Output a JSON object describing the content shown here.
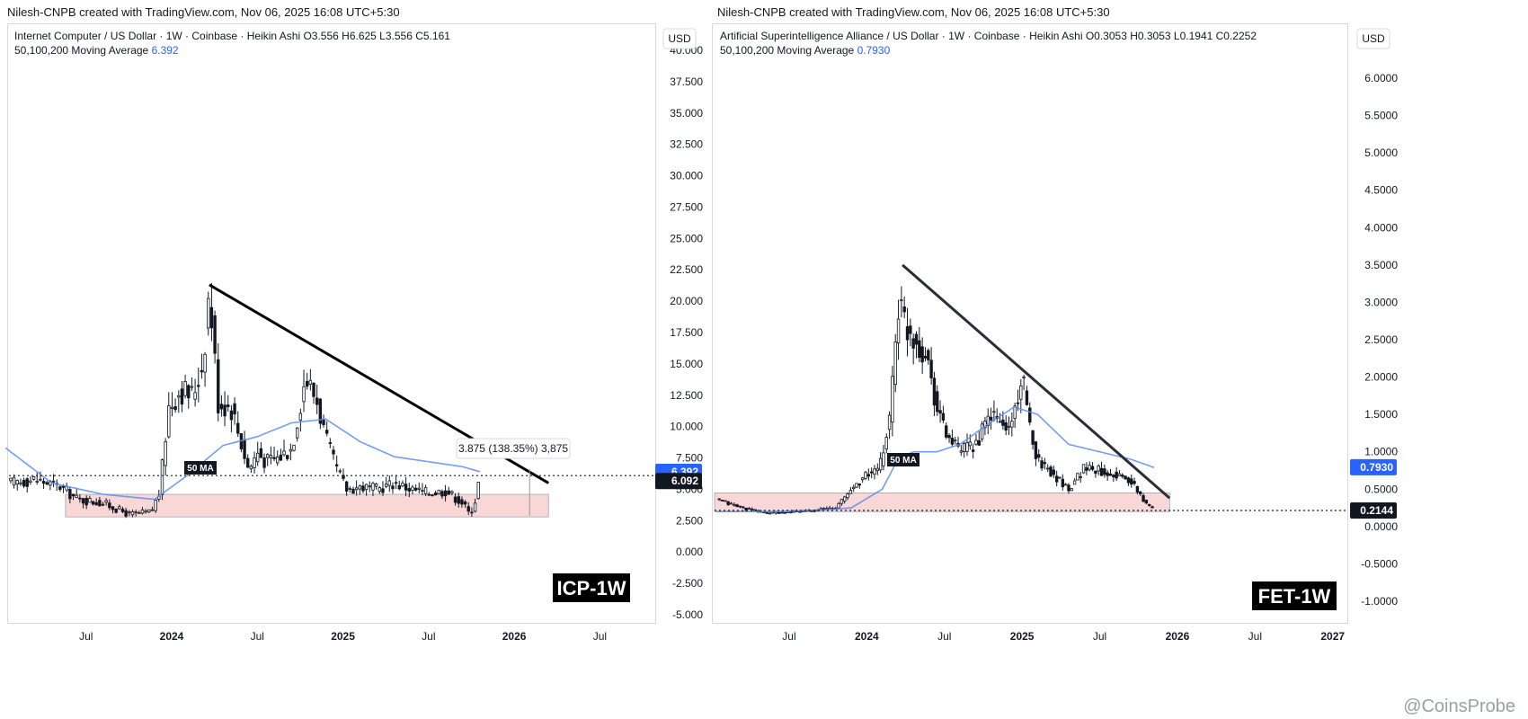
{
  "panels": [
    {
      "header": "Nilesh-CNPB created with TradingView.com, Nov 06, 2025 16:08 UTC+5:30",
      "info_line": "Internet Computer / US Dollar · 1W · Coinbase · Heikin Ashi  O3.556  H6.625  L3.556  C5.161",
      "ma_label": "50,100,200 Moving Average",
      "ma_value": "6.392",
      "currency": "USD",
      "ticker_badge": "ICP-1W",
      "ma_tag": "50 MA",
      "measure_label": "3.875 (138.35%) 3,875",
      "price_tag_ma": "6.392",
      "price_tag_last": "6.092",
      "colors": {
        "candle": "#131722",
        "ma": "#5b8def",
        "zone": "#f9d3d3",
        "trend": "#000000",
        "ma_tag_bg": "#131722"
      }
    },
    {
      "header": "Nilesh-CNPB created with TradingView.com, Nov 06, 2025 16:08 UTC+5:30",
      "info_line": "Artificial Superintelligence Alliance / US Dollar · 1W · Coinbase · Heikin Ashi  O0.3053  H0.3053  L0.1941  C0.2252",
      "ma_label": "50,100,200 Moving Average",
      "ma_value": "0.7930",
      "currency": "USD",
      "ticker_badge": "FET-1W",
      "ma_tag": "50 MA",
      "price_tag_ma": "0.7930",
      "price_tag_last": "0.2144",
      "colors": {
        "candle": "#131722",
        "ma": "#5b8def",
        "zone": "#f9d3d3",
        "trend": "#2a2e39",
        "ma_tag_bg": "#131722"
      }
    }
  ],
  "watermark": "@CoinsProbe",
  "chart_data": [
    {
      "type": "candlestick",
      "title": "Internet Computer / US Dollar · 1W · Coinbase · Heikin Ashi",
      "ylabel": "USD",
      "ylim": [
        -6,
        41
      ],
      "y_ticks": [
        "40.000",
        "37.500",
        "35.000",
        "32.500",
        "30.000",
        "27.500",
        "25.000",
        "22.500",
        "20.000",
        "17.500",
        "15.000",
        "12.500",
        "10.000",
        "7.500",
        "5.000",
        "2.500",
        "0.000",
        "-2.500",
        "-5.000"
      ],
      "x_ticks": [
        "Jul",
        "2024",
        "Jul",
        "2025",
        "Jul",
        "2026",
        "Jul"
      ],
      "x_tick_pos": [
        0.5,
        1.0,
        1.5,
        2.0,
        2.5,
        3.0,
        3.5
      ],
      "x_unit": "years since start of 2023",
      "xlim": [
        0.05,
        3.75
      ],
      "close_series_x": [
        0.06,
        0.2,
        0.35,
        0.45,
        0.6,
        0.75,
        0.88,
        0.93,
        0.98,
        1.05,
        1.12,
        1.18,
        1.22,
        1.27,
        1.35,
        1.45,
        1.5,
        1.55,
        1.62,
        1.7,
        1.78,
        1.85,
        1.9,
        1.95,
        2.02,
        2.1,
        2.2,
        2.3,
        2.4,
        2.5,
        2.6,
        2.7,
        2.74,
        2.77,
        2.8
      ],
      "close_series_y": [
        5.5,
        5.8,
        5.2,
        4.2,
        3.9,
        3.0,
        3.2,
        4.8,
        11.5,
        13.0,
        12.5,
        15.0,
        21.0,
        12.0,
        11.5,
        6.5,
        8.0,
        7.2,
        7.5,
        8.3,
        14.0,
        12.0,
        9.0,
        7.0,
        5.0,
        5.2,
        5.0,
        5.5,
        5.0,
        4.7,
        4.9,
        3.9,
        3.0,
        4.0,
        6.1
      ],
      "ma50_x": [
        0.03,
        0.3,
        0.6,
        0.9,
        1.1,
        1.3,
        1.5,
        1.7,
        1.9,
        2.1,
        2.3,
        2.5,
        2.7,
        2.8
      ],
      "ma50_y": [
        8.3,
        5.5,
        4.6,
        4.2,
        6.2,
        8.5,
        9.2,
        10.3,
        10.6,
        8.8,
        7.6,
        7.2,
        6.8,
        6.4
      ],
      "support_zone": [
        2.8,
        4.6
      ],
      "trendline": [
        [
          1.22,
          21.3
        ],
        [
          3.2,
          5.5
        ]
      ],
      "last_price": 6.092,
      "ma50_last": 6.392,
      "measure": "3.875 (138.35%) 3,875"
    },
    {
      "type": "candlestick",
      "title": "Artificial Superintelligence Alliance / US Dollar · 1W · Coinbase · Heikin Ashi",
      "ylabel": "USD",
      "ylim": [
        -1.2,
        6.5
      ],
      "y_ticks": [
        "6.0000",
        "5.5000",
        "5.0000",
        "4.5000",
        "4.0000",
        "3.5000",
        "3.0000",
        "2.5000",
        "2.0000",
        "1.5000",
        "1.0000",
        "0.5000",
        "0.0000",
        "-0.5000",
        "-1.0000"
      ],
      "x_ticks": [
        "Jul",
        "2024",
        "Jul",
        "2025",
        "Jul",
        "2026",
        "Jul",
        "2027"
      ],
      "x_tick_pos": [
        0.5,
        1.0,
        1.5,
        2.0,
        2.5,
        3.0,
        3.5,
        4.0
      ],
      "x_unit": "years since start of 2023",
      "xlim": [
        0.02,
        4.1
      ],
      "close_series_x": [
        0.05,
        0.2,
        0.35,
        0.5,
        0.65,
        0.8,
        0.9,
        1.0,
        1.08,
        1.15,
        1.2,
        1.25,
        1.32,
        1.4,
        1.45,
        1.52,
        1.6,
        1.7,
        1.8,
        1.85,
        1.92,
        2.0,
        2.05,
        2.1,
        2.2,
        2.3,
        2.4,
        2.5,
        2.6,
        2.7,
        2.75,
        2.8,
        2.85
      ],
      "close_series_y": [
        0.35,
        0.25,
        0.18,
        0.19,
        0.22,
        0.25,
        0.5,
        0.7,
        0.75,
        1.5,
        3.0,
        2.7,
        2.5,
        2.2,
        1.6,
        1.2,
        1.0,
        1.1,
        1.5,
        1.4,
        1.3,
        2.0,
        1.3,
        0.9,
        0.7,
        0.5,
        0.8,
        0.75,
        0.7,
        0.6,
        0.45,
        0.3,
        0.22
      ],
      "ma50_x": [
        0.03,
        0.4,
        0.7,
        0.9,
        1.1,
        1.2,
        1.3,
        1.45,
        1.6,
        1.8,
        1.95,
        2.1,
        2.3,
        2.5,
        2.7,
        2.85
      ],
      "ma50_y": [
        0.2,
        0.2,
        0.22,
        0.25,
        0.5,
        0.9,
        1.0,
        1.0,
        1.1,
        1.4,
        1.6,
        1.5,
        1.1,
        1.0,
        0.9,
        0.79
      ],
      "support_zone": [
        0.2,
        0.45
      ],
      "trendline": [
        [
          1.23,
          3.5
        ],
        [
          2.95,
          0.38
        ]
      ],
      "last_price": 0.2144,
      "ma50_last": 0.793
    }
  ]
}
